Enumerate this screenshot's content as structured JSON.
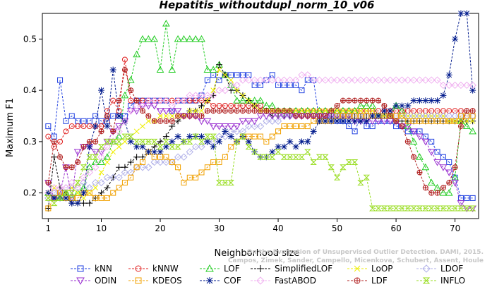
{
  "chart_data": {
    "type": "line",
    "title": "Hepatitis_withoutdupl_norm_10_v06",
    "xlabel": "Neighborhood size",
    "ylabel": "Maximum F1",
    "xlim": [
      0,
      74
    ],
    "ylim": [
      0.15,
      0.55
    ],
    "xticks": [
      1,
      10,
      20,
      30,
      40,
      50,
      60,
      70
    ],
    "yticks": [
      0.2,
      0.3,
      0.4,
      0.5
    ],
    "xticklabels": [
      "1",
      "10",
      "20",
      "30",
      "40",
      "50",
      "60",
      "70"
    ],
    "yticklabels": [
      "0.2",
      "0.3",
      "0.4",
      "0.5"
    ],
    "grid": false,
    "legend_position": "bottom",
    "credit": "Campos, Zimek, Sander, Campello, Micenkova, Schubert, Assent, Houle",
    "credit2": "On the Evaluation of Unsupervised Outlier Detection. DAMI, 2015.",
    "series": [
      {
        "name": "kNN",
        "color": "#1f3fe0",
        "marker": "square",
        "x_range": [
          1,
          73
        ],
        "y": [
          0.33,
          0.31,
          0.42,
          0.34,
          0.35,
          0.34,
          0.34,
          0.34,
          0.35,
          0.34,
          0.34,
          0.35,
          0.35,
          0.35,
          0.37,
          0.38,
          0.38,
          0.38,
          0.38,
          0.38,
          0.38,
          0.36,
          0.38,
          0.38,
          0.38,
          0.38,
          0.39,
          0.42,
          0.43,
          0.42,
          0.43,
          0.43,
          0.43,
          0.43,
          0.43,
          0.41,
          0.41,
          0.42,
          0.43,
          0.41,
          0.41,
          0.41,
          0.41,
          0.4,
          0.42,
          0.42,
          0.34,
          0.35,
          0.35,
          0.34,
          0.34,
          0.33,
          0.32,
          0.35,
          0.33,
          0.33,
          0.34,
          0.34,
          0.34,
          0.33,
          0.33,
          0.32,
          0.32,
          0.32,
          0.31,
          0.3,
          0.28,
          0.27,
          0.26,
          0.23,
          0.19,
          0.19,
          0.19
        ]
      },
      {
        "name": "kNNW",
        "color": "#e02020",
        "marker": "circle",
        "x_range": [
          1,
          73
        ],
        "y": [
          0.31,
          0.29,
          0.3,
          0.32,
          0.33,
          0.33,
          0.33,
          0.33,
          0.33,
          0.33,
          0.36,
          0.38,
          0.36,
          0.46,
          0.38,
          0.38,
          0.38,
          0.38,
          0.38,
          0.38,
          0.38,
          0.38,
          0.38,
          0.38,
          0.38,
          0.38,
          0.38,
          0.38,
          0.37,
          0.37,
          0.37,
          0.37,
          0.37,
          0.37,
          0.37,
          0.37,
          0.37,
          0.36,
          0.36,
          0.36,
          0.36,
          0.36,
          0.36,
          0.36,
          0.36,
          0.36,
          0.36,
          0.36,
          0.36,
          0.36,
          0.36,
          0.36,
          0.36,
          0.36,
          0.36,
          0.36,
          0.36,
          0.36,
          0.36,
          0.36,
          0.36,
          0.36,
          0.36,
          0.36,
          0.36,
          0.36,
          0.36,
          0.36,
          0.36,
          0.36,
          0.36,
          0.36,
          0.36
        ]
      },
      {
        "name": "LOF",
        "color": "#22cc22",
        "marker": "triangle-up",
        "x_range": [
          1,
          73
        ],
        "y": [
          0.2,
          0.19,
          0.19,
          0.2,
          0.19,
          0.2,
          0.21,
          0.25,
          0.26,
          0.26,
          0.27,
          0.3,
          0.31,
          0.39,
          0.42,
          0.47,
          0.5,
          0.5,
          0.5,
          0.44,
          0.53,
          0.44,
          0.5,
          0.5,
          0.5,
          0.5,
          0.5,
          0.44,
          0.44,
          0.45,
          0.43,
          0.41,
          0.38,
          0.38,
          0.38,
          0.38,
          0.38,
          0.37,
          0.37,
          0.36,
          0.36,
          0.36,
          0.36,
          0.36,
          0.36,
          0.36,
          0.36,
          0.36,
          0.36,
          0.36,
          0.36,
          0.36,
          0.36,
          0.37,
          0.37,
          0.37,
          0.35,
          0.35,
          0.35,
          0.37,
          0.36,
          0.33,
          0.3,
          0.27,
          0.25,
          0.22,
          0.21,
          0.2,
          0.2,
          0.23,
          0.34,
          0.33,
          0.32
        ]
      },
      {
        "name": "SimplifiedLOF",
        "color": "#000000",
        "marker": "plus",
        "x_range": [
          1,
          73
        ],
        "y": [
          0.17,
          0.27,
          0.21,
          0.2,
          0.18,
          0.18,
          0.18,
          0.18,
          0.19,
          0.2,
          0.21,
          0.23,
          0.25,
          0.25,
          0.26,
          0.27,
          0.27,
          0.28,
          0.29,
          0.3,
          0.31,
          0.33,
          0.34,
          0.35,
          0.36,
          0.36,
          0.37,
          0.38,
          0.39,
          0.45,
          0.43,
          0.4,
          0.4,
          0.39,
          0.38,
          0.37,
          0.36,
          0.36,
          0.35,
          0.35,
          0.35,
          0.35,
          0.35,
          0.35,
          0.35,
          0.35,
          0.35,
          0.35,
          0.35,
          0.35,
          0.35,
          0.35,
          0.35,
          0.35,
          0.35,
          0.35,
          0.35,
          0.35,
          0.35,
          0.34,
          0.34,
          0.34,
          0.34,
          0.34,
          0.34,
          0.34,
          0.34,
          0.34,
          0.34,
          0.34,
          0.34,
          0.34,
          0.34
        ]
      },
      {
        "name": "LoOP",
        "color": "#eeee00",
        "marker": "x",
        "x_range": [
          1,
          73
        ],
        "y": [
          0.19,
          0.21,
          0.2,
          0.2,
          0.21,
          0.2,
          0.19,
          0.2,
          0.21,
          0.24,
          0.26,
          0.28,
          0.29,
          0.3,
          0.31,
          0.32,
          0.33,
          0.34,
          0.34,
          0.35,
          0.35,
          0.35,
          0.35,
          0.35,
          0.36,
          0.36,
          0.36,
          0.38,
          0.4,
          0.44,
          0.43,
          0.42,
          0.4,
          0.39,
          0.38,
          0.37,
          0.36,
          0.36,
          0.36,
          0.36,
          0.36,
          0.36,
          0.36,
          0.36,
          0.36,
          0.36,
          0.36,
          0.36,
          0.36,
          0.36,
          0.36,
          0.36,
          0.36,
          0.36,
          0.36,
          0.36,
          0.35,
          0.35,
          0.35,
          0.34,
          0.35,
          0.35,
          0.35,
          0.35,
          0.35,
          0.35,
          0.35,
          0.35,
          0.34,
          0.34,
          0.34,
          0.34,
          0.34
        ]
      },
      {
        "name": "LDOF",
        "color": "#b0b0e8",
        "marker": "diamond",
        "x_range": [
          1,
          73
        ],
        "y": [
          0.19,
          0.2,
          0.2,
          0.21,
          0.21,
          0.21,
          0.22,
          0.21,
          0.22,
          0.22,
          0.23,
          0.23,
          0.23,
          0.24,
          0.24,
          0.25,
          0.25,
          0.25,
          0.26,
          0.26,
          0.26,
          0.26,
          0.27,
          0.27,
          0.28,
          0.29,
          0.29,
          0.3,
          0.3,
          0.31,
          0.31,
          0.32,
          0.32,
          0.32,
          0.33,
          0.33,
          0.33,
          0.34,
          0.34,
          0.34,
          0.35,
          0.35,
          0.35,
          0.35,
          0.35,
          0.35,
          0.35,
          0.35,
          0.35,
          0.35,
          0.35,
          0.35,
          0.35,
          0.35,
          0.35,
          0.35,
          0.35,
          0.35,
          0.35,
          0.35,
          0.35,
          0.35,
          0.35,
          0.35,
          0.35,
          0.35,
          0.35,
          0.35,
          0.35,
          0.35,
          0.35,
          0.35,
          0.35
        ]
      },
      {
        "name": "ODIN",
        "color": "#9a30d0",
        "marker": "triangle-down",
        "x_range": [
          1,
          73
        ],
        "y": [
          0.22,
          0.19,
          0.2,
          0.25,
          0.19,
          0.28,
          0.29,
          0.29,
          0.28,
          0.28,
          0.3,
          0.32,
          0.33,
          0.34,
          0.36,
          0.36,
          0.37,
          0.37,
          0.37,
          0.36,
          0.36,
          0.36,
          0.36,
          0.35,
          0.35,
          0.35,
          0.34,
          0.34,
          0.33,
          0.33,
          0.33,
          0.33,
          0.33,
          0.34,
          0.34,
          0.34,
          0.35,
          0.35,
          0.35,
          0.35,
          0.35,
          0.35,
          0.35,
          0.35,
          0.35,
          0.35,
          0.35,
          0.35,
          0.35,
          0.35,
          0.35,
          0.35,
          0.34,
          0.34,
          0.34,
          0.34,
          0.34,
          0.34,
          0.34,
          0.34,
          0.33,
          0.33,
          0.32,
          0.31,
          0.3,
          0.28,
          0.26,
          0.25,
          0.24,
          0.22,
          0.18,
          0.17,
          0.17
        ]
      },
      {
        "name": "KDEOS",
        "color": "#f0a000",
        "marker": "square",
        "x_range": [
          1,
          73
        ],
        "y": [
          0.17,
          0.19,
          0.2,
          0.19,
          0.19,
          0.19,
          0.2,
          0.2,
          0.19,
          0.19,
          0.19,
          0.2,
          0.21,
          0.22,
          0.23,
          0.25,
          0.26,
          0.28,
          0.27,
          0.27,
          0.27,
          0.26,
          0.25,
          0.22,
          0.23,
          0.23,
          0.24,
          0.25,
          0.26,
          0.26,
          0.27,
          0.29,
          0.3,
          0.31,
          0.31,
          0.31,
          0.31,
          0.3,
          0.31,
          0.32,
          0.33,
          0.33,
          0.33,
          0.33,
          0.33,
          0.34,
          0.34,
          0.34,
          0.34,
          0.35,
          0.35,
          0.35,
          0.35,
          0.35,
          0.35,
          0.35,
          0.35,
          0.35,
          0.35,
          0.35,
          0.35,
          0.34,
          0.34,
          0.34,
          0.34,
          0.34,
          0.34,
          0.34,
          0.34,
          0.34,
          0.35,
          0.35,
          0.35
        ]
      },
      {
        "name": "COF",
        "color": "#001a8c",
        "marker": "asterisk",
        "x_range": [
          1,
          73
        ],
        "y": [
          0.2,
          0.19,
          0.19,
          0.19,
          0.18,
          0.18,
          0.2,
          0.29,
          0.33,
          0.4,
          0.33,
          0.44,
          0.35,
          0.34,
          0.3,
          0.29,
          0.29,
          0.28,
          0.28,
          0.28,
          0.29,
          0.3,
          0.31,
          0.3,
          0.31,
          0.31,
          0.31,
          0.3,
          0.29,
          0.3,
          0.32,
          0.31,
          0.3,
          0.31,
          0.3,
          0.28,
          0.27,
          0.27,
          0.28,
          0.29,
          0.29,
          0.3,
          0.29,
          0.3,
          0.3,
          0.32,
          0.34,
          0.34,
          0.34,
          0.34,
          0.34,
          0.34,
          0.34,
          0.34,
          0.34,
          0.35,
          0.35,
          0.36,
          0.36,
          0.37,
          0.37,
          0.37,
          0.38,
          0.38,
          0.38,
          0.38,
          0.38,
          0.39,
          0.43,
          0.5,
          0.55,
          0.55,
          0.4
        ]
      },
      {
        "name": "FastABOD",
        "color": "#f0b0f0",
        "marker": "diamond",
        "x_range": [
          1,
          73
        ],
        "y": [
          0.2,
          0.21,
          0.21,
          0.21,
          0.22,
          0.21,
          0.23,
          0.24,
          0.25,
          0.27,
          0.29,
          0.3,
          0.32,
          0.34,
          0.36,
          0.37,
          0.37,
          0.38,
          0.38,
          0.38,
          0.38,
          0.37,
          0.38,
          0.38,
          0.39,
          0.39,
          0.39,
          0.39,
          0.39,
          0.4,
          0.4,
          0.41,
          0.41,
          0.42,
          0.42,
          0.42,
          0.42,
          0.42,
          0.42,
          0.42,
          0.42,
          0.42,
          0.42,
          0.43,
          0.43,
          0.42,
          0.42,
          0.42,
          0.42,
          0.42,
          0.42,
          0.42,
          0.42,
          0.42,
          0.42,
          0.42,
          0.42,
          0.42,
          0.42,
          0.42,
          0.42,
          0.42,
          0.42,
          0.42,
          0.42,
          0.42,
          0.42,
          0.41,
          0.41,
          0.41,
          0.41,
          0.41,
          0.41
        ]
      },
      {
        "name": "LDF",
        "color": "#b02020",
        "marker": "circle-plus",
        "x_range": [
          1,
          73
        ],
        "y": [
          0.22,
          0.3,
          0.27,
          0.25,
          0.25,
          0.26,
          0.29,
          0.3,
          0.3,
          0.32,
          0.35,
          0.32,
          0.38,
          0.44,
          0.4,
          0.38,
          0.36,
          0.35,
          0.34,
          0.34,
          0.34,
          0.34,
          0.35,
          0.35,
          0.35,
          0.35,
          0.35,
          0.36,
          0.36,
          0.36,
          0.36,
          0.36,
          0.36,
          0.36,
          0.36,
          0.36,
          0.36,
          0.36,
          0.36,
          0.36,
          0.36,
          0.36,
          0.35,
          0.35,
          0.35,
          0.35,
          0.35,
          0.35,
          0.36,
          0.37,
          0.38,
          0.38,
          0.38,
          0.38,
          0.38,
          0.38,
          0.38,
          0.37,
          0.35,
          0.34,
          0.33,
          0.3,
          0.27,
          0.24,
          0.21,
          0.2,
          0.2,
          0.21,
          0.22,
          0.25,
          0.33,
          0.36,
          0.36
        ]
      },
      {
        "name": "INFLO",
        "color": "#99dd22",
        "marker": "hourglass",
        "x_range": [
          1,
          73
        ],
        "y": [
          0.19,
          0.18,
          0.19,
          0.2,
          0.2,
          0.22,
          0.25,
          0.27,
          0.27,
          0.29,
          0.3,
          0.3,
          0.3,
          0.31,
          0.31,
          0.3,
          0.3,
          0.3,
          0.3,
          0.29,
          0.3,
          0.29,
          0.29,
          0.3,
          0.3,
          0.31,
          0.3,
          0.31,
          0.31,
          0.22,
          0.22,
          0.22,
          0.3,
          0.31,
          0.29,
          0.28,
          0.27,
          0.27,
          0.27,
          0.28,
          0.27,
          0.27,
          0.27,
          0.27,
          0.28,
          0.26,
          0.27,
          0.27,
          0.25,
          0.23,
          0.25,
          0.26,
          0.26,
          0.22,
          0.23,
          0.17,
          0.17,
          0.17,
          0.17,
          0.17,
          0.17,
          0.17,
          0.17,
          0.17,
          0.17,
          0.17,
          0.17,
          0.17,
          0.17,
          0.17,
          0.17,
          0.17,
          0.17
        ]
      }
    ]
  }
}
